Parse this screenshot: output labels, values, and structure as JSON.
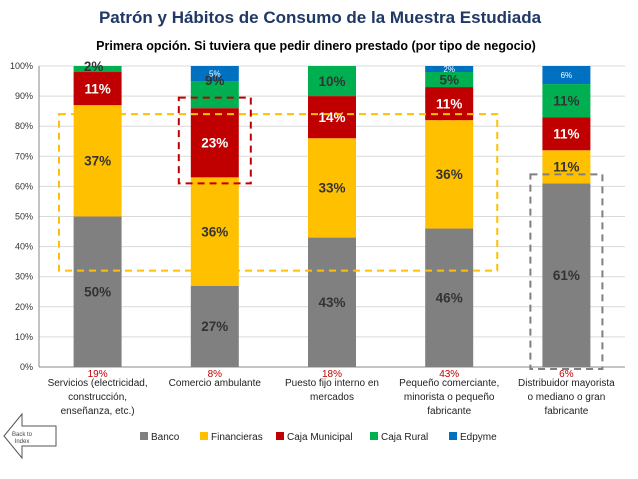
{
  "chart_data": {
    "type": "bar",
    "stacked": true,
    "percent_stacked": true,
    "title": "Patrón y Hábitos de Consumo de la Muestra Estudiada",
    "subtitle": "Primera opción. Si tuviera que pedir dinero prestado (por tipo de negocio)",
    "categories": [
      [
        "Servicios (electricidad,",
        "construcción,",
        "enseñanza, etc.)"
      ],
      [
        "Comercio ambulante"
      ],
      [
        "Puesto fijo interno en",
        "mercados"
      ],
      [
        "Pequeño comerciante,",
        "minorista o pequeño",
        "fabricante"
      ],
      [
        "Distribuidor mayorista",
        "o mediano o gran",
        "fabricante"
      ]
    ],
    "category_share_labels": [
      "19%",
      "8%",
      "18%",
      "43%",
      "6%"
    ],
    "series": [
      {
        "name": "Banco",
        "color": "#808080",
        "values": [
          50,
          27,
          43,
          46,
          61
        ],
        "labels": [
          "50%",
          "27%",
          "43%",
          "46%",
          "61%"
        ]
      },
      {
        "name": "Financieras",
        "color": "#FFC000",
        "values": [
          37,
          36,
          33,
          36,
          11
        ],
        "labels": [
          "37%",
          "36%",
          "33%",
          "36%",
          "11%"
        ]
      },
      {
        "name": "Caja Municipal",
        "color": "#C00000",
        "values": [
          11,
          23,
          14,
          11,
          11
        ],
        "labels": [
          "11%",
          "23%",
          "14%",
          "11%",
          "11%"
        ]
      },
      {
        "name": "Caja Rural",
        "color": "#00B050",
        "values": [
          2,
          9,
          10,
          5,
          11
        ],
        "labels": [
          "2%",
          "9%",
          "10%",
          "5%",
          "11%"
        ]
      },
      {
        "name": "Edpyme",
        "color": "#0070C0",
        "values": [
          0,
          5,
          0,
          2,
          6
        ],
        "labels": [
          "",
          "5%",
          "",
          "2%",
          "6%"
        ]
      }
    ],
    "yaxis": {
      "ylim": [
        0,
        100
      ],
      "ticks": [
        "0%",
        "10%",
        "20%",
        "30%",
        "40%",
        "50%",
        "60%",
        "70%",
        "80%",
        "90%",
        "100%"
      ]
    },
    "grid": true,
    "legend": {
      "position": "bottom"
    },
    "colors": {
      "title": "#1F3864",
      "share_label": "#C00000",
      "dash_yellow": "#FFC000",
      "dash_red": "#C00000",
      "dash_gray": "#808080"
    }
  },
  "navigation": {
    "back_label_line1": "Back to",
    "back_label_line2": "Index"
  }
}
